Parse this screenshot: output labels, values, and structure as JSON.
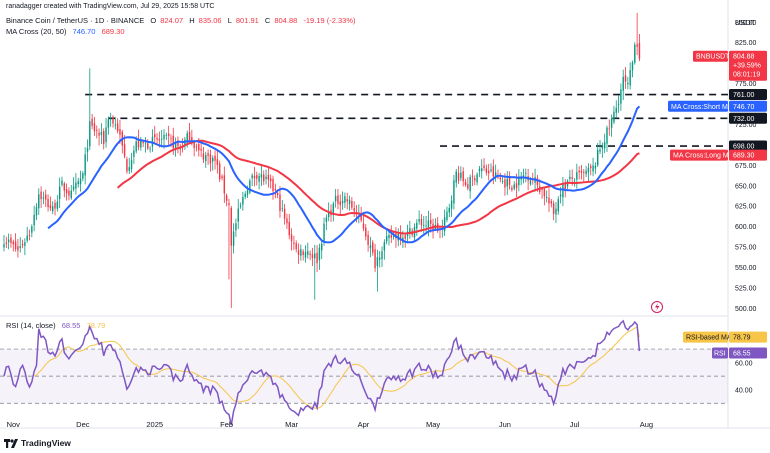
{
  "header": {
    "created_by": "ranadagger created with TradingView.com, Jul 29, 2025 15:58 UTC",
    "symbol_line": "Binance Coin / TetherUS · 1D · BINANCE",
    "ohlc": {
      "o_label": "O",
      "o": "824.07",
      "h_label": "H",
      "h": "835.06",
      "l_label": "L",
      "l": "801.91",
      "c_label": "C",
      "c": "804.88",
      "change": "-19.19 (-2.33%)"
    },
    "ma_line": {
      "label": "MA Cross (20, 50)",
      "v1": "746.70",
      "v2": "689.30"
    },
    "rsi_line": {
      "label": "RSI (14, close)",
      "v1": "68.55",
      "v2": "78.79"
    },
    "colors": {
      "down": "#f23645",
      "up": "#089981",
      "short_ma": "#2962ff",
      "long_ma": "#f23645"
    }
  },
  "axis": {
    "currency": "USDT",
    "price_ticks": [
      "850.00",
      "825.00",
      "800.00",
      "775.00",
      "750.00",
      "725.00",
      "700.00",
      "675.00",
      "650.00",
      "625.00",
      "600.00",
      "575.00",
      "550.00",
      "525.00",
      "500.00"
    ],
    "rsi_ticks": [
      "60.00",
      "40.00"
    ],
    "time_labels": [
      "Nov",
      "Dec",
      "2025",
      "Feb",
      "Mar",
      "Apr",
      "May",
      "Jun",
      "Jul",
      "Aug"
    ]
  },
  "price_tags": {
    "symbol": {
      "label": "BNBUSDT",
      "price": "804.88",
      "change": "+39.59%",
      "timer": "08:01:19"
    },
    "lines": [
      "761.00",
      "732.00",
      "698.00"
    ],
    "short_ma": {
      "label": "MA Cross:Short MA",
      "value": "746.70"
    },
    "long_ma": {
      "label": "MA Cross:Long MA",
      "value": "689.30"
    },
    "rsi_ma": {
      "label": "RSI-based MA",
      "value": "78.79"
    },
    "rsi": {
      "label": "RSI",
      "value": "68.55"
    }
  },
  "footer": {
    "brand": "TradingView"
  },
  "chart_data": [
    {
      "type": "candlestick",
      "title": "Binance Coin / TetherUS · 1D · BINANCE",
      "ylabel": "USDT",
      "ylim": [
        495,
        862
      ],
      "levels": [
        761,
        732,
        698
      ],
      "x_labels": [
        "Nov",
        "Dec",
        "2025",
        "Feb",
        "Mar",
        "Apr",
        "May",
        "Jun",
        "Jul",
        "Aug"
      ],
      "anchors": [
        {
          "date": "2024-10-28",
          "close": 585
        },
        {
          "date": "2024-11-03",
          "close": 570
        },
        {
          "date": "2024-11-08",
          "close": 592
        },
        {
          "date": "2024-11-12",
          "close": 640
        },
        {
          "date": "2024-11-18",
          "close": 620
        },
        {
          "date": "2024-11-22",
          "close": 650
        },
        {
          "date": "2024-11-26",
          "close": 638
        },
        {
          "date": "2024-12-01",
          "close": 662
        },
        {
          "date": "2024-12-04",
          "close": 722
        },
        {
          "date": "2024-12-07",
          "close": 715
        },
        {
          "date": "2024-12-10",
          "close": 705
        },
        {
          "date": "2024-12-12",
          "close": 735
        },
        {
          "date": "2024-12-16",
          "close": 720
        },
        {
          "date": "2024-12-20",
          "close": 672
        },
        {
          "date": "2024-12-24",
          "close": 700
        },
        {
          "date": "2024-12-28",
          "close": 700
        },
        {
          "date": "2025-01-02",
          "close": 705
        },
        {
          "date": "2025-01-07",
          "close": 705
        },
        {
          "date": "2025-01-12",
          "close": 695
        },
        {
          "date": "2025-01-16",
          "close": 712
        },
        {
          "date": "2025-01-20",
          "close": 690
        },
        {
          "date": "2025-01-27",
          "close": 680
        },
        {
          "date": "2025-02-02",
          "close": 625
        },
        {
          "date": "2025-02-03",
          "close": 580
        },
        {
          "date": "2025-02-06",
          "close": 615
        },
        {
          "date": "2025-02-10",
          "close": 650
        },
        {
          "date": "2025-02-14",
          "close": 665
        },
        {
          "date": "2025-02-18",
          "close": 655
        },
        {
          "date": "2025-02-22",
          "close": 642
        },
        {
          "date": "2025-02-27",
          "close": 600
        },
        {
          "date": "2025-03-03",
          "close": 570
        },
        {
          "date": "2025-03-08",
          "close": 570
        },
        {
          "date": "2025-03-12",
          "close": 560
        },
        {
          "date": "2025-03-16",
          "close": 610
        },
        {
          "date": "2025-03-20",
          "close": 630
        },
        {
          "date": "2025-03-24",
          "close": 635
        },
        {
          "date": "2025-03-28",
          "close": 620
        },
        {
          "date": "2025-04-01",
          "close": 600
        },
        {
          "date": "2025-04-06",
          "close": 555
        },
        {
          "date": "2025-04-09",
          "close": 575
        },
        {
          "date": "2025-04-14",
          "close": 590
        },
        {
          "date": "2025-04-20",
          "close": 590
        },
        {
          "date": "2025-04-25",
          "close": 605
        },
        {
          "date": "2025-04-30",
          "close": 600
        },
        {
          "date": "2025-05-05",
          "close": 595
        },
        {
          "date": "2025-05-08",
          "close": 625
        },
        {
          "date": "2025-05-11",
          "close": 665
        },
        {
          "date": "2025-05-16",
          "close": 650
        },
        {
          "date": "2025-05-21",
          "close": 670
        },
        {
          "date": "2025-05-26",
          "close": 665
        },
        {
          "date": "2025-05-31",
          "close": 655
        },
        {
          "date": "2025-06-05",
          "close": 650
        },
        {
          "date": "2025-06-10",
          "close": 665
        },
        {
          "date": "2025-06-14",
          "close": 655
        },
        {
          "date": "2025-06-18",
          "close": 640
        },
        {
          "date": "2025-06-22",
          "close": 615
        },
        {
          "date": "2025-06-25",
          "close": 645
        },
        {
          "date": "2025-06-30",
          "close": 658
        },
        {
          "date": "2025-07-05",
          "close": 663
        },
        {
          "date": "2025-07-09",
          "close": 670
        },
        {
          "date": "2025-07-12",
          "close": 695
        },
        {
          "date": "2025-07-16",
          "close": 720
        },
        {
          "date": "2025-07-19",
          "close": 745
        },
        {
          "date": "2025-07-22",
          "close": 778
        },
        {
          "date": "2025-07-24",
          "close": 770
        },
        {
          "date": "2025-07-26",
          "close": 800
        },
        {
          "date": "2025-07-27",
          "close": 828
        },
        {
          "date": "2025-07-28",
          "close": 824
        },
        {
          "date": "2025-07-29",
          "close": 805
        }
      ],
      "last_bar": {
        "open": 824.07,
        "high": 835.06,
        "low": 801.91,
        "close": 804.88
      },
      "series": [
        {
          "name": "MA Cross:Short MA",
          "last": 746.7
        },
        {
          "name": "MA Cross:Long MA",
          "last": 689.3
        }
      ]
    },
    {
      "type": "line",
      "title": "RSI (14, close)",
      "ylim": [
        25,
        90
      ],
      "levels": [
        70,
        50,
        30
      ],
      "series": [
        {
          "name": "RSI",
          "last": 68.55
        },
        {
          "name": "RSI-based MA",
          "last": 78.79
        }
      ]
    }
  ]
}
